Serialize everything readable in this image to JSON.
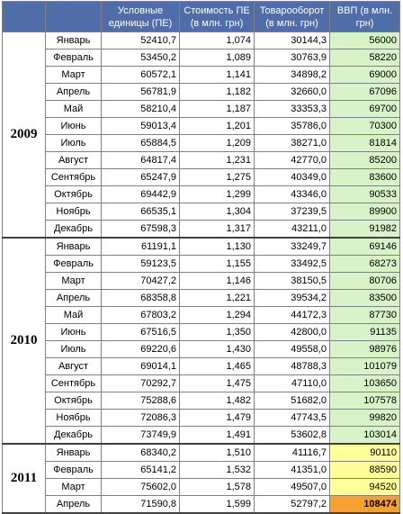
{
  "headers": {
    "year": "",
    "month": "",
    "units": "Условные единицы (ПЕ)",
    "cost": "Стоимость ПЕ (в млн. грн)",
    "turnover": "Товарооборот (в млн. грн)",
    "gdp": "ВВП (в млн. грн)"
  },
  "colors": {
    "header_bg": "#4f6da8",
    "gdp_green": "#d8f3c8",
    "gdp_yellow": "#ffff99",
    "gdp_orange": "#f7a030"
  },
  "years": [
    {
      "year": "2009",
      "rows": [
        {
          "month": "Январь",
          "units": "52410,7",
          "cost": "1,074",
          "turnover": "30144,3",
          "gdp": "56000",
          "hl": "green"
        },
        {
          "month": "Февраль",
          "units": "53450,2",
          "cost": "1,089",
          "turnover": "30763,9",
          "gdp": "58220",
          "hl": "green"
        },
        {
          "month": "Март",
          "units": "60572,1",
          "cost": "1,141",
          "turnover": "34898,2",
          "gdp": "69000",
          "hl": "green"
        },
        {
          "month": "Апрель",
          "units": "56781,9",
          "cost": "1,182",
          "turnover": "32660,0",
          "gdp": "67096",
          "hl": "green"
        },
        {
          "month": "Май",
          "units": "58210,4",
          "cost": "1,187",
          "turnover": "33353,3",
          "gdp": "69700",
          "hl": "green"
        },
        {
          "month": "Июнь",
          "units": "59013,4",
          "cost": "1,201",
          "turnover": "35786,0",
          "gdp": "70300",
          "hl": "green"
        },
        {
          "month": "Июль",
          "units": "65884,5",
          "cost": "1,209",
          "turnover": "38271,0",
          "gdp": "81814",
          "hl": "green"
        },
        {
          "month": "Август",
          "units": "64817,4",
          "cost": "1,231",
          "turnover": "42770,0",
          "gdp": "85200",
          "hl": "green"
        },
        {
          "month": "Сентябрь",
          "units": "65247,9",
          "cost": "1,275",
          "turnover": "40349,0",
          "gdp": "83600",
          "hl": "green"
        },
        {
          "month": "Октябрь",
          "units": "69442,9",
          "cost": "1,299",
          "turnover": "43346,0",
          "gdp": "90533",
          "hl": "green"
        },
        {
          "month": "Ноябрь",
          "units": "66535,1",
          "cost": "1,304",
          "turnover": "37239,5",
          "gdp": "89900",
          "hl": "green"
        },
        {
          "month": "Декабрь",
          "units": "67598,3",
          "cost": "1,317",
          "turnover": "43211,0",
          "gdp": "91982",
          "hl": "green"
        }
      ]
    },
    {
      "year": "2010",
      "rows": [
        {
          "month": "Январь",
          "units": "61191,1",
          "cost": "1,130",
          "turnover": "33249,7",
          "gdp": "69146",
          "hl": "green"
        },
        {
          "month": "Февраль",
          "units": "59123,5",
          "cost": "1,155",
          "turnover": "33492,5",
          "gdp": "68273",
          "hl": "green"
        },
        {
          "month": "Март",
          "units": "70427,2",
          "cost": "1,146",
          "turnover": "38150,5",
          "gdp": "80706",
          "hl": "green"
        },
        {
          "month": "Апрель",
          "units": "68358,8",
          "cost": "1,221",
          "turnover": "39534,2",
          "gdp": "83500",
          "hl": "green"
        },
        {
          "month": "Май",
          "units": "67803,2",
          "cost": "1,294",
          "turnover": "44172,3",
          "gdp": "87730",
          "hl": "green"
        },
        {
          "month": "Июнь",
          "units": "67516,5",
          "cost": "1,350",
          "turnover": "42800,0",
          "gdp": "91135",
          "hl": "green"
        },
        {
          "month": "Июль",
          "units": "69220,6",
          "cost": "1,430",
          "turnover": "49558,0",
          "gdp": "98976",
          "hl": "green"
        },
        {
          "month": "Август",
          "units": "69014,1",
          "cost": "1,465",
          "turnover": "48788,3",
          "gdp": "101079",
          "hl": "green"
        },
        {
          "month": "Сентябрь",
          "units": "70292,7",
          "cost": "1,475",
          "turnover": "47110,0",
          "gdp": "103650",
          "hl": "green"
        },
        {
          "month": "Октябрь",
          "units": "75288,6",
          "cost": "1,482",
          "turnover": "51682,0",
          "gdp": "107578",
          "hl": "green"
        },
        {
          "month": "Ноябрь",
          "units": "72086,3",
          "cost": "1,479",
          "turnover": "47743,5",
          "gdp": "99820",
          "hl": "green"
        },
        {
          "month": "Декабрь",
          "units": "73749,9",
          "cost": "1,491",
          "turnover": "53602,8",
          "gdp": "103014",
          "hl": "green"
        }
      ]
    },
    {
      "year": "2011",
      "rows": [
        {
          "month": "Январь",
          "units": "68340,2",
          "cost": "1,510",
          "turnover": "41116,7",
          "gdp": "90110",
          "hl": "yellow"
        },
        {
          "month": "Февраль",
          "units": "65141,2",
          "cost": "1,532",
          "turnover": "41351,0",
          "gdp": "88590",
          "hl": "yellow"
        },
        {
          "month": "Март",
          "units": "75602,0",
          "cost": "1,578",
          "turnover": "49507,0",
          "gdp": "94520",
          "hl": "yellow"
        },
        {
          "month": "Апрель",
          "units": "71590,8",
          "cost": "1,599",
          "turnover": "52797,2",
          "gdp": "108474",
          "hl": "orange"
        }
      ]
    }
  ]
}
